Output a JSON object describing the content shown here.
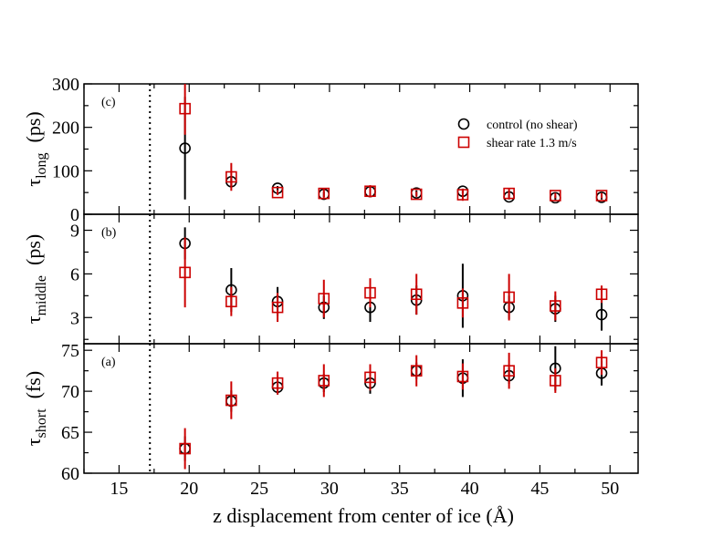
{
  "chart_data": [
    {
      "panel": "c",
      "type": "scatter",
      "panel_label": "(c)",
      "ylabel_main": "τ",
      "ylabel_sub": "long",
      "ylabel_unit": "(ps)",
      "ylim": [
        0,
        300
      ],
      "yticks": [
        0,
        100,
        200,
        300
      ],
      "series": [
        {
          "name": "control (no shear)",
          "marker": "circle",
          "color": "#000000",
          "x": [
            19.7,
            23.0,
            26.3,
            29.6,
            32.9,
            36.2,
            39.5,
            42.8,
            46.1,
            49.4
          ],
          "y": [
            152,
            75,
            60,
            46,
            52,
            49,
            53,
            40,
            38,
            39
          ],
          "err": [
            118,
            10,
            5,
            6,
            6,
            6,
            5,
            6,
            5,
            5
          ]
        },
        {
          "name": "shear rate 1.3 m/s",
          "marker": "square",
          "color": "#cc0000",
          "x": [
            19.7,
            23.0,
            26.3,
            29.6,
            32.9,
            36.2,
            39.5,
            42.8,
            46.1,
            49.4
          ],
          "y": [
            243,
            86,
            50,
            48,
            53,
            46,
            45,
            48,
            43,
            43
          ],
          "err": [
            60,
            32,
            6,
            10,
            14,
            6,
            14,
            12,
            6,
            6
          ]
        }
      ]
    },
    {
      "panel": "b",
      "type": "scatter",
      "panel_label": "(b)",
      "ylabel_main": "τ",
      "ylabel_sub": "middle",
      "ylabel_unit": "(ps)",
      "ylim": [
        1.2,
        10.1
      ],
      "yticks": [
        3,
        6,
        9
      ],
      "series": [
        {
          "name": "control (no shear)",
          "marker": "circle",
          "color": "#000000",
          "x": [
            19.7,
            23.0,
            26.3,
            29.6,
            32.9,
            36.2,
            39.5,
            42.8,
            46.1,
            49.4
          ],
          "y": [
            8.1,
            4.9,
            4.1,
            3.7,
            3.7,
            4.2,
            4.5,
            3.7,
            3.6,
            3.2
          ],
          "err": [
            1.1,
            1.5,
            1.0,
            0.8,
            1.0,
            1.0,
            2.2,
            0.8,
            0.9,
            1.1
          ]
        },
        {
          "name": "shear rate 1.3 m/s",
          "marker": "square",
          "color": "#cc0000",
          "x": [
            19.7,
            23.0,
            26.3,
            29.6,
            32.9,
            36.2,
            39.5,
            42.8,
            46.1,
            49.4
          ],
          "y": [
            6.1,
            4.1,
            3.7,
            4.3,
            4.7,
            4.6,
            4.0,
            4.4,
            3.8,
            4.6
          ],
          "err": [
            2.4,
            1.0,
            1.0,
            1.3,
            1.0,
            1.4,
            1.0,
            1.6,
            1.0,
            0.6
          ]
        }
      ]
    },
    {
      "panel": "a",
      "type": "scatter",
      "panel_label": "(a)",
      "ylabel_main": "τ",
      "ylabel_sub": "short",
      "ylabel_unit": "(fs)",
      "ylim": [
        60,
        75.8
      ],
      "yticks": [
        60,
        65,
        70,
        75
      ],
      "series": [
        {
          "name": "control (no shear)",
          "marker": "circle",
          "color": "#000000",
          "x": [
            19.7,
            23.0,
            26.3,
            29.6,
            32.9,
            36.2,
            39.5,
            42.8,
            46.1,
            49.4
          ],
          "y": [
            63.0,
            68.8,
            70.5,
            71.0,
            71.0,
            72.5,
            71.6,
            71.9,
            72.8,
            72.2
          ],
          "err": [
            1.5,
            1.3,
            0.9,
            1.1,
            1.3,
            1.0,
            2.3,
            1.0,
            2.7,
            1.5
          ]
        },
        {
          "name": "shear rate 1.3 m/s",
          "marker": "square",
          "color": "#cc0000",
          "x": [
            19.7,
            23.0,
            26.3,
            29.6,
            32.9,
            36.2,
            39.5,
            42.8,
            46.1,
            49.4
          ],
          "y": [
            63.0,
            68.9,
            71.0,
            71.3,
            71.7,
            72.5,
            71.8,
            72.5,
            71.3,
            73.5
          ],
          "err": [
            2.5,
            2.3,
            1.4,
            2.0,
            1.6,
            1.9,
            1.6,
            2.2,
            1.5,
            1.5
          ]
        }
      ]
    }
  ],
  "xaxis": {
    "label": "z displacement from center of ice (Å)",
    "xlim": [
      12.5,
      52
    ],
    "xticks": [
      15,
      20,
      25,
      30,
      35,
      40,
      45,
      50
    ],
    "dotted_line_x": 17.2
  },
  "legend": {
    "placement": "top-right of top panel",
    "entries": [
      "control (no shear)",
      "shear rate 1.3 m/s"
    ]
  },
  "colors": {
    "control": "#000000",
    "shear": "#cc0000"
  }
}
